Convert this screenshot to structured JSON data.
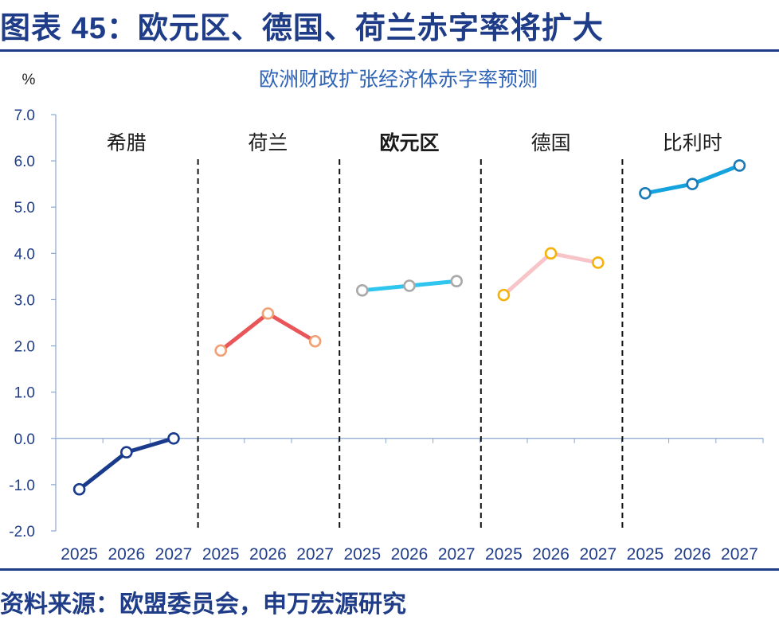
{
  "figure_title": "图表 45：欧元区、德国、荷兰赤字率将扩大",
  "source": "资料来源：欧盟委员会，申万宏源研究",
  "chart_data": {
    "type": "line",
    "title": "欧洲财政扩张经济体赤字率预测",
    "ylabel": "%",
    "ylim": [
      -2.0,
      7.0
    ],
    "yticks": [
      -2.0,
      -1.0,
      0.0,
      1.0,
      2.0,
      3.0,
      4.0,
      5.0,
      6.0,
      7.0
    ],
    "ytick_labels": [
      "-2.0",
      "-1.0",
      "0.0",
      "1.0",
      "2.0",
      "3.0",
      "4.0",
      "5.0",
      "6.0",
      "7.0"
    ],
    "x_years": [
      "2025",
      "2026",
      "2027"
    ],
    "groups": [
      {
        "name": "希腊",
        "values": [
          -1.1,
          -0.3,
          0.0
        ],
        "color": "#1a3a8c",
        "marker": "#1a3a8c",
        "bold": false
      },
      {
        "name": "荷兰",
        "values": [
          1.9,
          2.7,
          2.1
        ],
        "color": "#e8565a",
        "marker": "#f0a072",
        "bold": false
      },
      {
        "name": "欧元区",
        "values": [
          3.2,
          3.3,
          3.4
        ],
        "color": "#2ec5ee",
        "marker": "#a9a9a9",
        "bold": true
      },
      {
        "name": "德国",
        "values": [
          3.1,
          4.0,
          3.8
        ],
        "color": "#f7c4c8",
        "marker": "#f5b20a",
        "bold": false
      },
      {
        "name": "比利时",
        "values": [
          5.3,
          5.5,
          5.9
        ],
        "color": "#14a3dc",
        "marker": "#1a7ab8",
        "bold": false
      }
    ]
  }
}
